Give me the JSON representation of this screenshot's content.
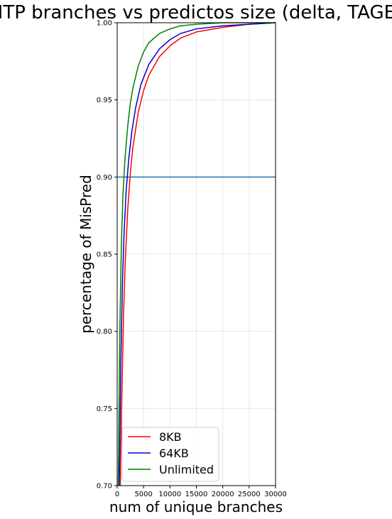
{
  "chart_data": {
    "type": "line",
    "title": "HTP branches vs predictos size (delta, TAGE)",
    "xlabel": "num of unique branches",
    "ylabel": "percentage of MisPred",
    "xlim": [
      0,
      30000
    ],
    "ylim": [
      0.7,
      1.0
    ],
    "x_ticks": [
      0,
      5000,
      10000,
      15000,
      20000,
      25000,
      30000
    ],
    "x_tick_labels": [
      "0",
      "5000",
      "10000",
      "15000",
      "20000",
      "25000",
      "30000"
    ],
    "y_ticks": [
      0.7,
      0.75,
      0.8,
      0.85,
      0.9,
      0.95,
      1.0
    ],
    "y_tick_labels": [
      "0.70",
      "0.75",
      "0.80",
      "0.85",
      "0.90",
      "0.95",
      "1.00"
    ],
    "grid": true,
    "legend_position": "lower-left",
    "series": [
      {
        "name": "8KB",
        "color": "#ff0000",
        "x": [
          600,
          900,
          1200,
          1500,
          2000,
          2500,
          3000,
          4000,
          5000,
          6000,
          8000,
          10000,
          12000,
          15000,
          20000,
          25000,
          30000
        ],
        "y": [
          0.7,
          0.76,
          0.81,
          0.843,
          0.879,
          0.903,
          0.92,
          0.942,
          0.956,
          0.966,
          0.978,
          0.985,
          0.99,
          0.994,
          0.997,
          0.999,
          1.0
        ]
      },
      {
        "name": "64KB",
        "color": "#0000cc",
        "x": [
          400,
          700,
          1000,
          1300,
          1700,
          2200,
          2800,
          3500,
          4500,
          6000,
          8000,
          10000,
          12000,
          15000,
          20000,
          25000,
          30000
        ],
        "y": [
          0.7,
          0.78,
          0.832,
          0.863,
          0.891,
          0.912,
          0.93,
          0.945,
          0.96,
          0.973,
          0.983,
          0.989,
          0.993,
          0.996,
          0.998,
          0.999,
          1.0
        ]
      },
      {
        "name": "Unlimited",
        "color": "#008000",
        "x": [
          200,
          500,
          800,
          1100,
          1500,
          2000,
          2500,
          3000,
          4000,
          5000,
          6000,
          8000,
          10000,
          12000,
          15000,
          20000,
          30000
        ],
        "y": [
          0.7,
          0.8,
          0.857,
          0.889,
          0.913,
          0.933,
          0.948,
          0.958,
          0.972,
          0.981,
          0.987,
          0.993,
          0.996,
          0.998,
          0.999,
          1.0,
          1.0
        ]
      }
    ],
    "hlines": [
      {
        "y": 0.9,
        "color": "#1f77b4"
      }
    ]
  }
}
